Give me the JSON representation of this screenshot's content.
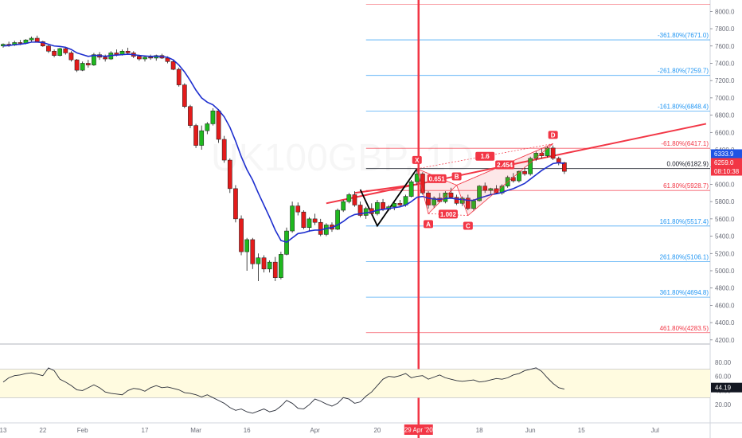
{
  "chart_data": {
    "type": "candlestick",
    "watermark": "UK100GBP, 1D",
    "x_ticks": [
      {
        "label": "13",
        "i": 0
      },
      {
        "label": "22",
        "i": 7
      },
      {
        "label": "Feb",
        "i": 14
      },
      {
        "label": "17",
        "i": 25
      },
      {
        "label": "Mar",
        "i": 34
      },
      {
        "label": "16",
        "i": 43
      },
      {
        "label": "Apr",
        "i": 55
      },
      {
        "label": "20",
        "i": 66
      },
      {
        "label": "29 Apr '20",
        "i": 73
      },
      {
        "label": "18",
        "i": 84
      },
      {
        "label": "Jun",
        "i": 93
      },
      {
        "label": "15",
        "i": 102
      },
      {
        "label": "Jul",
        "i": 115
      }
    ],
    "x_ticks_highlight": "29 Apr '20",
    "price_axis": {
      "min": 4200,
      "max": 8000,
      "step": 200
    },
    "price_ticks": [
      "8000.0",
      "7800.0",
      "7600.0",
      "7400.0",
      "7200.0",
      "7000.0",
      "6800.0",
      "6600.0",
      "6400.0",
      "6200.0",
      "6000.0",
      "5800.0",
      "5600.0",
      "5400.0",
      "5200.0",
      "5000.0",
      "4800.0",
      "4600.0",
      "4400.0",
      "4200.0"
    ],
    "price_tags": [
      {
        "label": "6333.9",
        "value": 6333.9,
        "color": "#1e53e5"
      },
      {
        "label": "6259.0",
        "value": 6259.0,
        "color": "#f23645"
      },
      {
        "label": "08:10:38",
        "value": 6180.0,
        "color": "#f23645"
      }
    ],
    "ohlc": [
      [
        7600,
        7630,
        7580,
        7620
      ],
      [
        7620,
        7650,
        7590,
        7610
      ],
      [
        7610,
        7660,
        7600,
        7640
      ],
      [
        7640,
        7670,
        7610,
        7630
      ],
      [
        7630,
        7680,
        7620,
        7670
      ],
      [
        7670,
        7710,
        7650,
        7690
      ],
      [
        7690,
        7720,
        7640,
        7650
      ],
      [
        7650,
        7660,
        7590,
        7600
      ],
      [
        7600,
        7610,
        7520,
        7540
      ],
      [
        7540,
        7560,
        7470,
        7490
      ],
      [
        7490,
        7580,
        7480,
        7570
      ],
      [
        7570,
        7590,
        7500,
        7520
      ],
      [
        7520,
        7540,
        7420,
        7440
      ],
      [
        7440,
        7450,
        7300,
        7320
      ],
      [
        7320,
        7420,
        7310,
        7400
      ],
      [
        7400,
        7440,
        7350,
        7380
      ],
      [
        7380,
        7520,
        7370,
        7500
      ],
      [
        7500,
        7530,
        7440,
        7470
      ],
      [
        7470,
        7500,
        7420,
        7450
      ],
      [
        7450,
        7540,
        7440,
        7520
      ],
      [
        7520,
        7560,
        7480,
        7500
      ],
      [
        7500,
        7560,
        7490,
        7540
      ],
      [
        7540,
        7580,
        7500,
        7520
      ],
      [
        7520,
        7540,
        7460,
        7480
      ],
      [
        7480,
        7500,
        7430,
        7450
      ],
      [
        7450,
        7490,
        7420,
        7470
      ],
      [
        7470,
        7500,
        7440,
        7460
      ],
      [
        7460,
        7500,
        7430,
        7490
      ],
      [
        7490,
        7510,
        7450,
        7460
      ],
      [
        7460,
        7480,
        7400,
        7420
      ],
      [
        7420,
        7440,
        7320,
        7330
      ],
      [
        7330,
        7350,
        7130,
        7150
      ],
      [
        7150,
        7170,
        6880,
        6900
      ],
      [
        6900,
        6920,
        6650,
        6680
      ],
      [
        6680,
        6700,
        6420,
        6450
      ],
      [
        6450,
        6680,
        6400,
        6620
      ],
      [
        6620,
        6720,
        6580,
        6700
      ],
      [
        6700,
        6880,
        6680,
        6850
      ],
      [
        6850,
        6870,
        6480,
        6520
      ],
      [
        6520,
        6560,
        6250,
        6280
      ],
      [
        6280,
        6300,
        5900,
        5950
      ],
      [
        5950,
        5990,
        5560,
        5600
      ],
      [
        5600,
        5640,
        5180,
        5220
      ],
      [
        5220,
        5380,
        5000,
        5360
      ],
      [
        5360,
        5380,
        5020,
        5080
      ],
      [
        5080,
        5200,
        4880,
        5150
      ],
      [
        5150,
        5180,
        4980,
        5020
      ],
      [
        5020,
        5120,
        4980,
        5100
      ],
      [
        5100,
        5160,
        4880,
        4920
      ],
      [
        4920,
        5220,
        4900,
        5190
      ],
      [
        5190,
        5500,
        5180,
        5460
      ],
      [
        5460,
        5800,
        5440,
        5750
      ],
      [
        5750,
        5790,
        5640,
        5680
      ],
      [
        5680,
        5700,
        5480,
        5500
      ],
      [
        5500,
        5620,
        5450,
        5600
      ],
      [
        5600,
        5660,
        5530,
        5560
      ],
      [
        5560,
        5600,
        5400,
        5420
      ],
      [
        5420,
        5550,
        5400,
        5530
      ],
      [
        5530,
        5560,
        5450,
        5480
      ],
      [
        5480,
        5720,
        5470,
        5700
      ],
      [
        5700,
        5820,
        5680,
        5800
      ],
      [
        5800,
        5900,
        5780,
        5880
      ],
      [
        5880,
        5920,
        5740,
        5760
      ],
      [
        5760,
        5800,
        5620,
        5640
      ],
      [
        5640,
        5740,
        5600,
        5720
      ],
      [
        5720,
        5780,
        5640,
        5660
      ],
      [
        5660,
        5820,
        5640,
        5790
      ],
      [
        5790,
        5830,
        5690,
        5710
      ],
      [
        5710,
        5760,
        5690,
        5740
      ],
      [
        5740,
        5800,
        5700,
        5780
      ],
      [
        5780,
        5820,
        5740,
        5760
      ],
      [
        5760,
        5880,
        5740,
        5860
      ],
      [
        5860,
        6050,
        5850,
        6030
      ],
      [
        6030,
        6170,
        5990,
        6120
      ],
      [
        6120,
        6140,
        5880,
        5900
      ],
      [
        5900,
        5920,
        5720,
        5760
      ],
      [
        5760,
        5860,
        5730,
        5840
      ],
      [
        5840,
        5900,
        5790,
        5800
      ],
      [
        5800,
        5920,
        5780,
        5900
      ],
      [
        5900,
        5960,
        5840,
        5850
      ],
      [
        5850,
        5880,
        5760,
        5780
      ],
      [
        5780,
        5860,
        5750,
        5840
      ],
      [
        5840,
        5880,
        5700,
        5720
      ],
      [
        5720,
        5830,
        5690,
        5810
      ],
      [
        5810,
        5990,
        5800,
        5980
      ],
      [
        5980,
        6020,
        5900,
        5930
      ],
      [
        5930,
        5960,
        5880,
        5950
      ],
      [
        5950,
        5990,
        5890,
        5900
      ],
      [
        5900,
        6000,
        5880,
        5980
      ],
      [
        5980,
        6100,
        5960,
        6080
      ],
      [
        6080,
        6130,
        6020,
        6040
      ],
      [
        6040,
        6160,
        6020,
        6150
      ],
      [
        6150,
        6200,
        6100,
        6120
      ],
      [
        6120,
        6320,
        6100,
        6300
      ],
      [
        6300,
        6380,
        6270,
        6360
      ],
      [
        6360,
        6420,
        6300,
        6330
      ],
      [
        6330,
        6440,
        6310,
        6420
      ],
      [
        6420,
        6450,
        6280,
        6300
      ],
      [
        6300,
        6320,
        6220,
        6250
      ],
      [
        6250,
        6260,
        6120,
        6150
      ]
    ],
    "ema": [
      7600,
      7605,
      7615,
      7620,
      7630,
      7645,
      7645,
      7640,
      7620,
      7600,
      7595,
      7585,
      7560,
      7520,
      7500,
      7480,
      7490,
      7490,
      7480,
      7490,
      7495,
      7500,
      7505,
      7500,
      7490,
      7485,
      7480,
      7482,
      7478,
      7470,
      7440,
      7380,
      7300,
      7200,
      7090,
      7000,
      6950,
      6920,
      6860,
      6780,
      6660,
      6500,
      6320,
      6170,
      6050,
      5900,
      5760,
      5620,
      5470,
      5350,
      5330,
      5380,
      5430,
      5440,
      5460,
      5470,
      5470,
      5490,
      5500,
      5530,
      5570,
      5620,
      5650,
      5660,
      5670,
      5680,
      5700,
      5710,
      5720,
      5730,
      5740,
      5760,
      5800,
      5850,
      5860,
      5840,
      5830,
      5825,
      5835,
      5840,
      5830,
      5825,
      5815,
      5815,
      5840,
      5860,
      5880,
      5890,
      5905,
      5930,
      5950,
      5980,
      6010,
      6060,
      6110,
      6160,
      6200,
      6240,
      6250,
      6240
    ],
    "fib_levels": [
      {
        "label": "-361.80%(7671.0)",
        "value": 7671.0,
        "color": "#2196f3"
      },
      {
        "label": "-261.80%(7259.7)",
        "value": 7259.7,
        "color": "#2196f3"
      },
      {
        "label": "-161.80%(6848.4)",
        "value": 6848.4,
        "color": "#2196f3"
      },
      {
        "label": "-61.80%(6417.1)",
        "value": 6417.1,
        "color": "#f23645"
      },
      {
        "label": "0.00%(6182.9)",
        "value": 6182.9,
        "color": "#131722"
      },
      {
        "label": "61.80%(5928.7)",
        "value": 5928.7,
        "color": "#f23645"
      },
      {
        "label": "161.80%(5517.4)",
        "value": 5517.4,
        "color": "#2196f3"
      },
      {
        "label": "261.80%(5106.1)",
        "value": 5106.1,
        "color": "#2196f3"
      },
      {
        "label": "361.80%(4694.8)",
        "value": 4694.8,
        "color": "#2196f3"
      },
      {
        "label": "461.80%(4283.5)",
        "value": 4283.5,
        "color": "#f23645"
      }
    ],
    "fib_top_value": 8080,
    "vertical_line_i": 73,
    "trendlines": [
      {
        "from": [
          57,
          5780
        ],
        "to": [
          124,
          6700
        ],
        "color": "#f23645"
      },
      {
        "from": [
          62,
          5900
        ],
        "to": [
          73,
          6000
        ],
        "color": "#f23645"
      }
    ],
    "wedge": {
      "from": [
        63,
        5940
      ],
      "via": [
        66,
        5520
      ],
      "to": [
        73,
        6180
      ],
      "color": "#000000"
    },
    "harmonic": {
      "points": [
        {
          "name": "X",
          "i": 73,
          "v": 6180
        },
        {
          "name": "A",
          "i": 75,
          "v": 5660
        },
        {
          "name": "B",
          "i": 80,
          "v": 5990
        },
        {
          "name": "C",
          "i": 82,
          "v": 5640
        },
        {
          "name": "D",
          "i": 97,
          "v": 6470
        }
      ],
      "ratios": [
        {
          "label": "0.651",
          "i": 76.5,
          "v": 6060
        },
        {
          "label": "1.002",
          "i": 78.5,
          "v": 5650
        },
        {
          "label": "1.6",
          "i": 85,
          "v": 6320
        },
        {
          "label": "2.454",
          "i": 88.5,
          "v": 6220
        }
      ]
    },
    "rsi": {
      "min": 0,
      "max": 100,
      "ticks": [
        "80.00",
        "60.00",
        "40.00",
        "20.00"
      ],
      "band": [
        30,
        70
      ],
      "current": "44.19",
      "values": [
        52,
        58,
        61,
        62,
        64,
        65,
        63,
        61,
        72,
        68,
        56,
        52,
        47,
        41,
        40,
        44,
        48,
        44,
        38,
        36,
        35,
        34,
        40,
        43,
        42,
        39,
        44,
        47,
        44,
        45,
        43,
        41,
        37,
        36,
        34,
        31,
        34,
        30,
        26,
        22,
        16,
        12,
        14,
        10,
        8,
        11,
        14,
        10,
        12,
        18,
        26,
        22,
        15,
        14,
        20,
        28,
        25,
        21,
        18,
        22,
        30,
        28,
        22,
        24,
        32,
        38,
        47,
        56,
        60,
        59,
        61,
        64,
        58,
        60,
        61,
        56,
        59,
        62,
        58,
        56,
        54,
        53,
        54,
        55,
        52,
        53,
        55,
        57,
        56,
        58,
        62,
        64,
        68,
        70,
        72,
        67,
        58,
        50,
        44,
        42
      ]
    }
  }
}
